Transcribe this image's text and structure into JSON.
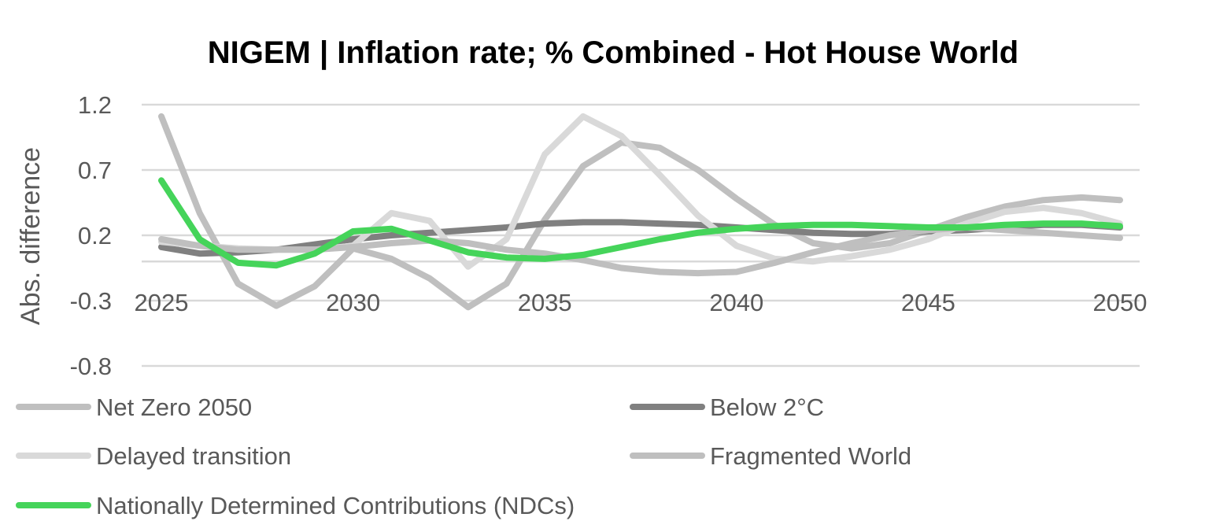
{
  "chart_data": {
    "type": "line",
    "title": "NIGEM | Inflation rate; % Combined - Hot House World",
    "xlabel": "",
    "ylabel": "Abs. difference",
    "x": [
      2025,
      2026,
      2027,
      2028,
      2029,
      2030,
      2031,
      2032,
      2033,
      2034,
      2035,
      2036,
      2037,
      2038,
      2039,
      2040,
      2041,
      2042,
      2043,
      2044,
      2045,
      2046,
      2047,
      2048,
      2049,
      2050
    ],
    "x_ticks": [
      "2025",
      "2030",
      "2035",
      "2040",
      "2045",
      "2050"
    ],
    "y_ticks": [
      "1.2",
      "0.7",
      "0.2",
      "-0.3",
      "-0.8"
    ],
    "ylim": [
      -0.8,
      1.2
    ],
    "grid": true,
    "legend": "bottom",
    "series": [
      {
        "name": "Net Zero 2050",
        "color": "#bfbfbf",
        "values": [
          1.11,
          0.37,
          -0.17,
          -0.34,
          -0.19,
          0.1,
          0.02,
          -0.13,
          -0.35,
          -0.17,
          0.32,
          0.73,
          0.91,
          0.87,
          0.7,
          0.48,
          0.28,
          0.14,
          0.1,
          0.14,
          0.24,
          0.34,
          0.42,
          0.47,
          0.49,
          0.47
        ]
      },
      {
        "name": "Below 2°C",
        "color": "#808080",
        "values": [
          0.11,
          0.06,
          0.07,
          0.09,
          0.13,
          0.17,
          0.2,
          0.22,
          0.24,
          0.26,
          0.29,
          0.3,
          0.3,
          0.29,
          0.28,
          0.26,
          0.24,
          0.22,
          0.21,
          0.21,
          0.23,
          0.24,
          0.26,
          0.28,
          0.28,
          0.26
        ]
      },
      {
        "name": "Delayed transition",
        "color": "#d9d9d9",
        "values": [
          0.15,
          0.12,
          0.1,
          0.09,
          0.09,
          0.12,
          0.37,
          0.31,
          -0.04,
          0.17,
          0.82,
          1.11,
          0.96,
          0.66,
          0.35,
          0.12,
          0.02,
          0.0,
          0.04,
          0.09,
          0.17,
          0.29,
          0.38,
          0.41,
          0.37,
          0.29
        ]
      },
      {
        "name": "Fragmented World",
        "color": "#bfbfbf",
        "values": [
          0.17,
          0.12,
          0.09,
          0.09,
          0.09,
          0.11,
          0.14,
          0.16,
          0.14,
          0.09,
          0.06,
          0.01,
          -0.05,
          -0.08,
          -0.09,
          -0.08,
          -0.01,
          0.07,
          0.14,
          0.2,
          0.24,
          0.26,
          0.24,
          0.22,
          0.2,
          0.18
        ]
      },
      {
        "name": "Nationally Determined Contributions (NDCs)",
        "color": "#45d45a",
        "values": [
          0.62,
          0.17,
          -0.01,
          -0.03,
          0.06,
          0.23,
          0.25,
          0.16,
          0.07,
          0.03,
          0.02,
          0.05,
          0.11,
          0.17,
          0.22,
          0.25,
          0.27,
          0.28,
          0.28,
          0.27,
          0.26,
          0.26,
          0.28,
          0.29,
          0.29,
          0.27
        ]
      }
    ]
  }
}
